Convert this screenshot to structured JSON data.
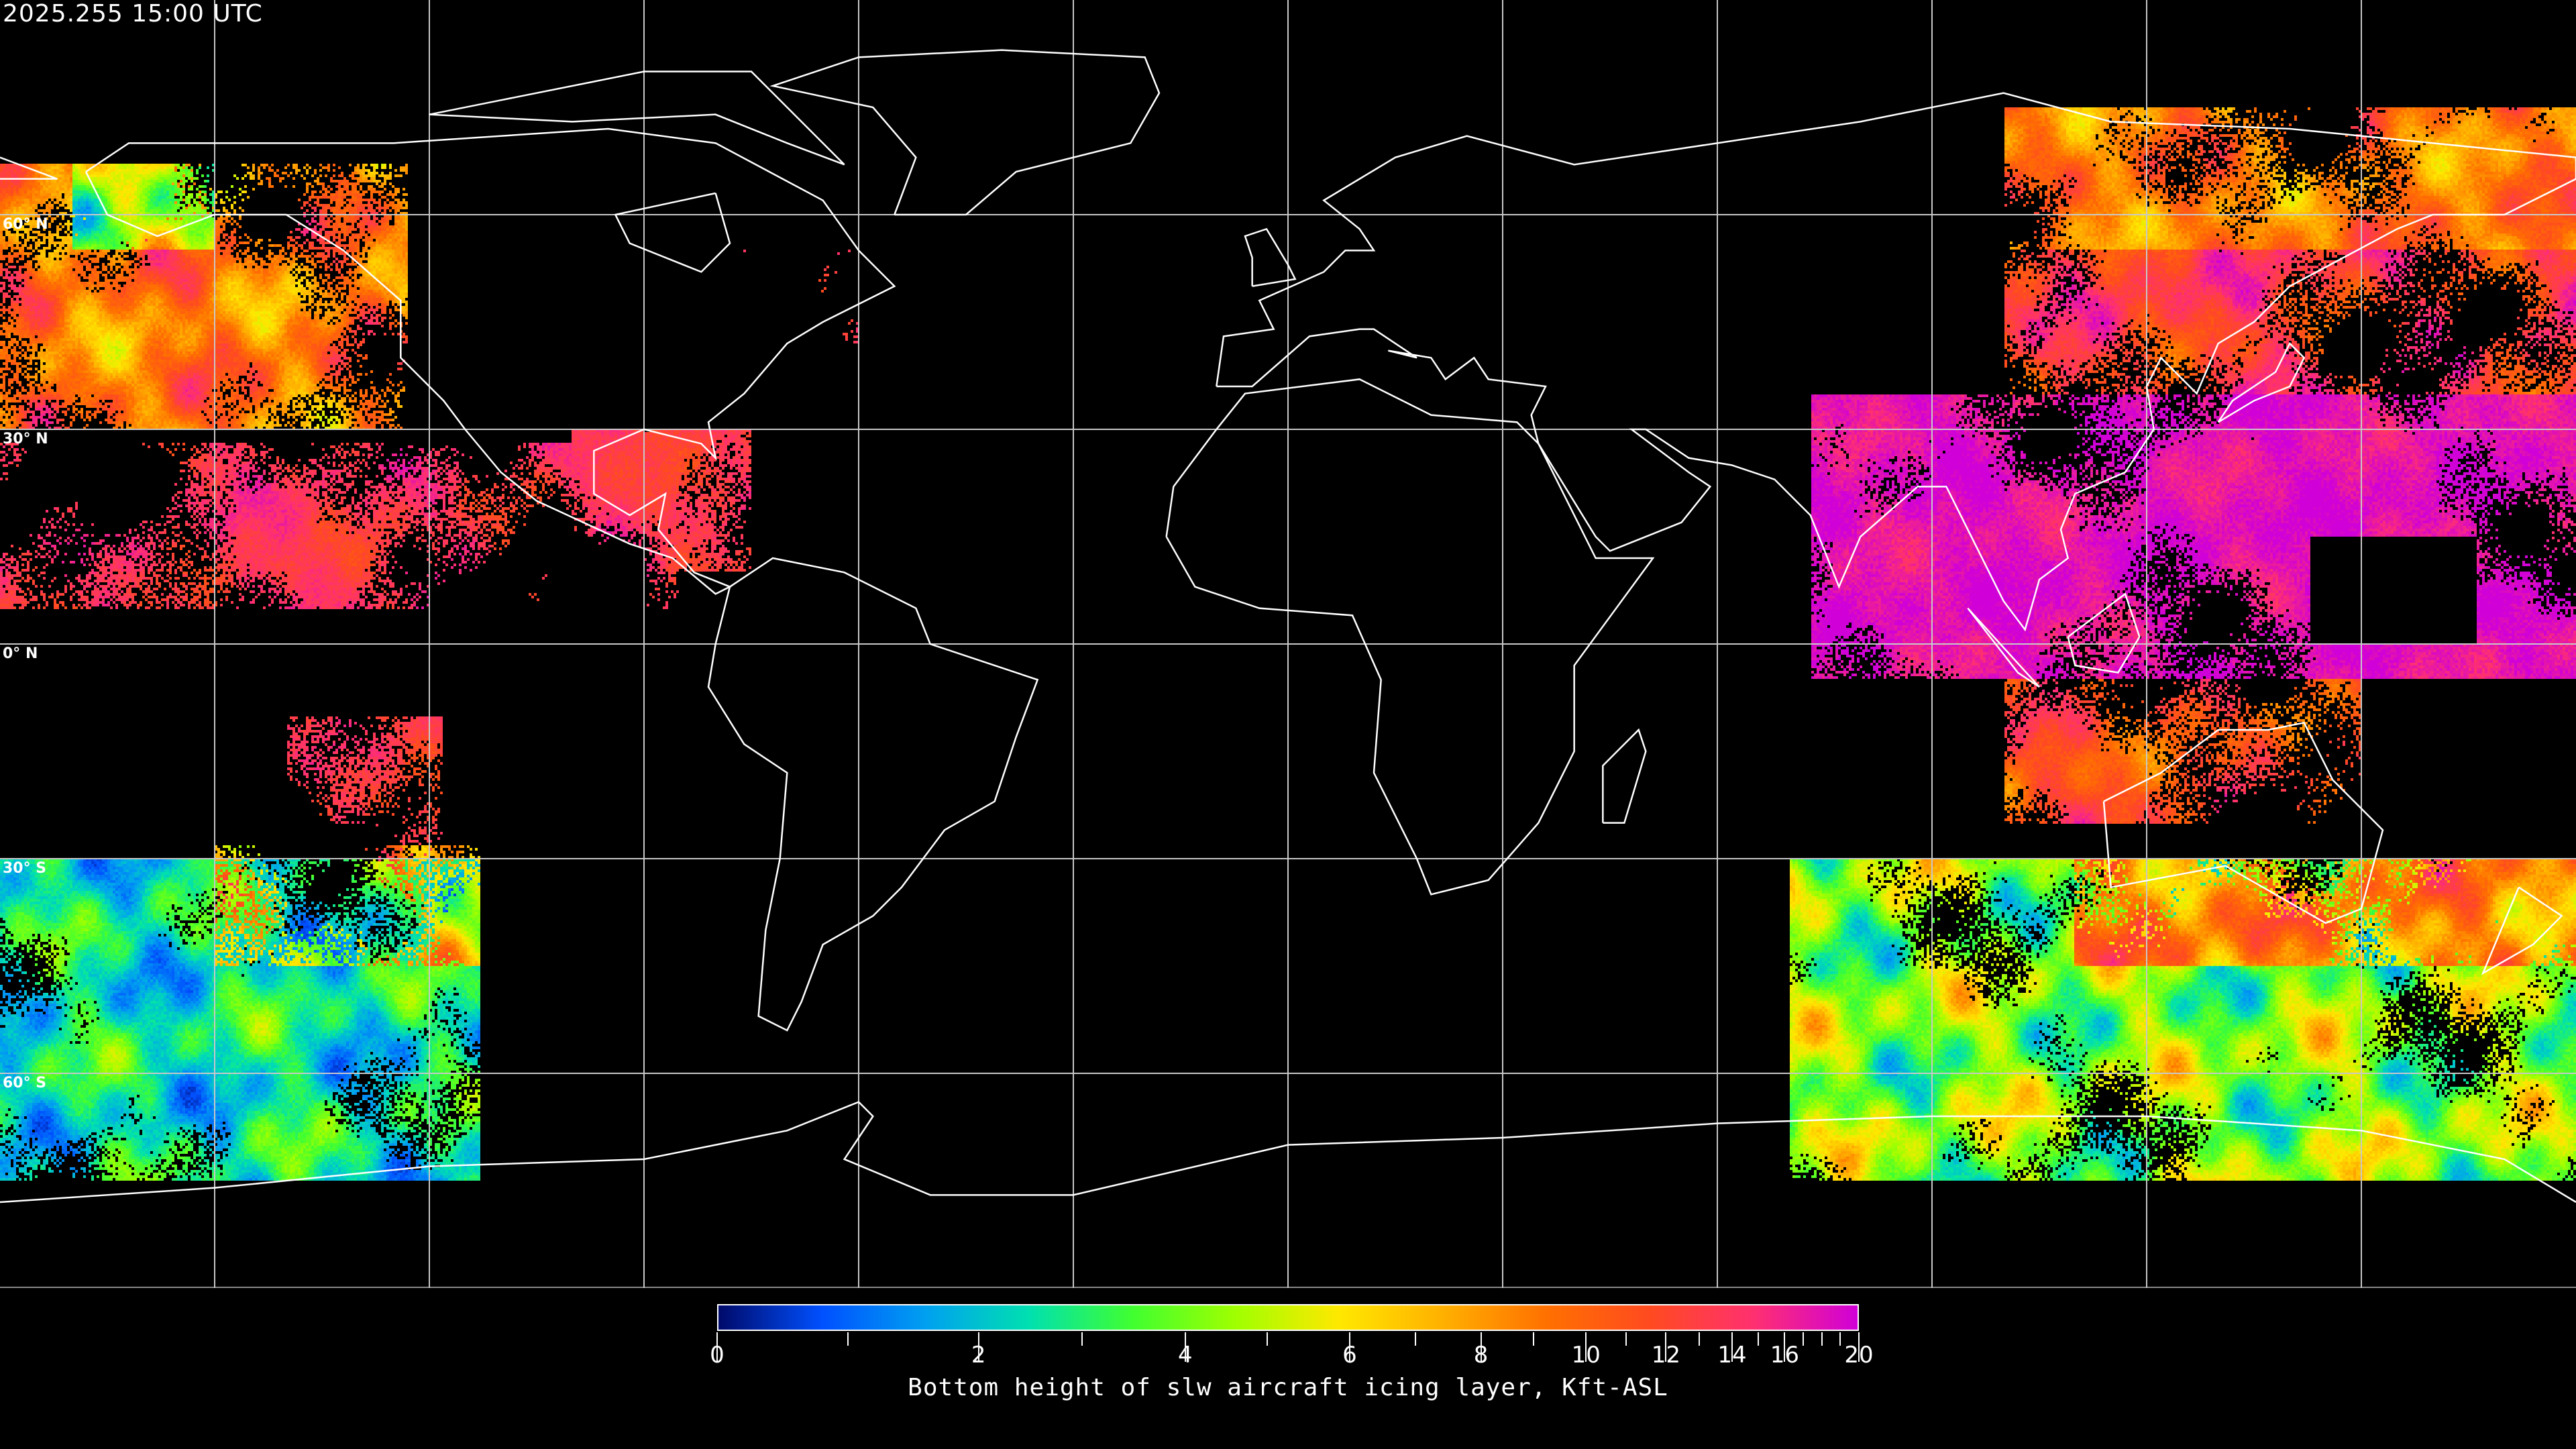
{
  "title": "2025.255 15:00 UTC",
  "map": {
    "projection": "equirectangular",
    "lon_range": [
      -180,
      180
    ],
    "lat_range": [
      -90,
      90
    ],
    "grid_spacing_deg": 30,
    "lat_labels": [
      {
        "lat": 60,
        "text": "60° N"
      },
      {
        "lat": 30,
        "text": "30° N"
      },
      {
        "lat": 0,
        "text": "0° N"
      },
      {
        "lat": -30,
        "text": "30° S"
      },
      {
        "lat": -60,
        "text": "60° S"
      }
    ],
    "coastline_color": "#ffffff",
    "grid_color": "#c8c8c8",
    "background": "#000000"
  },
  "colorbar": {
    "title": "Bottom height of slw aircraft icing layer, Kft-ASL",
    "range": [
      0,
      20
    ],
    "tick_labels": [
      "0",
      "2",
      "4",
      "6",
      "8",
      "10",
      "12",
      "14",
      "16",
      "20"
    ],
    "tick_values": [
      0,
      2,
      4,
      6,
      8,
      10,
      12,
      14,
      16,
      20
    ],
    "minor_tick_values": [
      1,
      3,
      5,
      7,
      9,
      11,
      13,
      15,
      17,
      18,
      19
    ],
    "colors": [
      "#000a6a",
      "#0050ff",
      "#00a0f0",
      "#00e0b0",
      "#40ff30",
      "#a0ff00",
      "#ffe800",
      "#ffb000",
      "#ff7000",
      "#ff4a20",
      "#ff3070",
      "#d000d8"
    ]
  }
}
